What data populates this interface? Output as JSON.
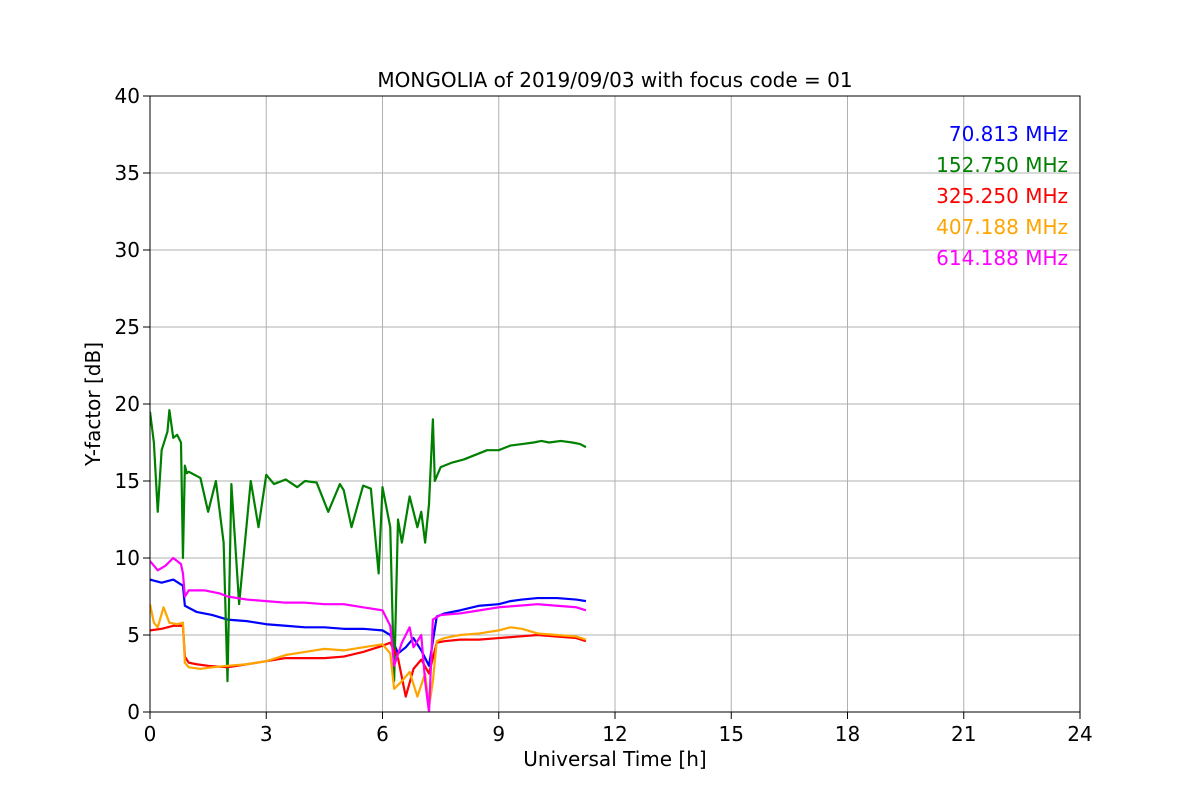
{
  "chart_data": {
    "type": "line",
    "title": "MONGOLIA of 2019/09/03 with focus code = 01",
    "xlabel": "Universal Time [h]",
    "ylabel": "Y-factor [dB]",
    "xlim": [
      0,
      24
    ],
    "ylim": [
      0,
      40
    ],
    "xticks": [
      0,
      3,
      6,
      9,
      12,
      15,
      18,
      21,
      24
    ],
    "yticks": [
      0,
      5,
      10,
      15,
      20,
      25,
      30,
      35,
      40
    ],
    "grid": true,
    "legend_position": "top-right",
    "series": [
      {
        "name": "70.813 MHz",
        "color": "#0000ff",
        "x": [
          0,
          0.3,
          0.6,
          0.85,
          0.9,
          1.2,
          1.6,
          2.0,
          2.5,
          3.0,
          3.5,
          4.0,
          4.5,
          5.0,
          5.5,
          6.0,
          6.2,
          6.4,
          6.6,
          6.8,
          7.0,
          7.2,
          7.4,
          7.6,
          8.0,
          8.5,
          9.0,
          9.3,
          9.6,
          10.0,
          10.5,
          11.0,
          11.25
        ],
        "y": [
          8.6,
          8.4,
          8.6,
          8.2,
          6.9,
          6.5,
          6.3,
          6.0,
          5.9,
          5.7,
          5.6,
          5.5,
          5.5,
          5.4,
          5.4,
          5.3,
          5.0,
          3.8,
          4.2,
          4.8,
          4.0,
          3.0,
          6.2,
          6.4,
          6.6,
          6.9,
          7.0,
          7.2,
          7.3,
          7.4,
          7.4,
          7.3,
          7.2
        ]
      },
      {
        "name": "152.750 MHz",
        "color": "#008000",
        "x": [
          0,
          0.1,
          0.2,
          0.3,
          0.45,
          0.5,
          0.6,
          0.7,
          0.8,
          0.85,
          0.9,
          0.95,
          1.0,
          1.3,
          1.5,
          1.7,
          1.9,
          2.0,
          2.1,
          2.3,
          2.6,
          2.8,
          3.0,
          3.2,
          3.5,
          3.8,
          4.0,
          4.3,
          4.6,
          4.9,
          5.0,
          5.2,
          5.5,
          5.7,
          5.9,
          6.0,
          6.2,
          6.3,
          6.4,
          6.5,
          6.7,
          6.9,
          7.0,
          7.1,
          7.2,
          7.3,
          7.35,
          7.5,
          7.8,
          8.1,
          8.4,
          8.7,
          9.0,
          9.3,
          9.6,
          9.9,
          10.1,
          10.3,
          10.6,
          10.9,
          11.1,
          11.25
        ],
        "y": [
          19.5,
          17.5,
          13.0,
          17.0,
          18.2,
          19.6,
          17.8,
          18.0,
          17.5,
          10.0,
          16.0,
          15.5,
          15.6,
          15.2,
          13.0,
          15.0,
          11.0,
          2.0,
          14.8,
          7.0,
          15.0,
          12.0,
          15.4,
          14.8,
          15.1,
          14.6,
          15.0,
          14.9,
          13.0,
          14.8,
          14.4,
          12.0,
          14.7,
          14.5,
          9.0,
          14.6,
          12.0,
          2.0,
          12.5,
          11.0,
          14.0,
          12.0,
          13.0,
          11.0,
          13.5,
          19.0,
          15.0,
          15.9,
          16.2,
          16.4,
          16.7,
          17.0,
          17.0,
          17.3,
          17.4,
          17.5,
          17.6,
          17.5,
          17.6,
          17.5,
          17.4,
          17.2
        ]
      },
      {
        "name": "325.250 MHz",
        "color": "#ff0000",
        "x": [
          0,
          0.3,
          0.6,
          0.85,
          0.9,
          1.0,
          1.2,
          1.5,
          2.0,
          2.5,
          3.0,
          3.5,
          4.0,
          4.5,
          5.0,
          5.5,
          6.0,
          6.2,
          6.4,
          6.6,
          6.8,
          7.0,
          7.2,
          7.4,
          7.6,
          8.0,
          8.5,
          9.0,
          9.5,
          10.0,
          10.5,
          11.0,
          11.25
        ],
        "y": [
          5.3,
          5.4,
          5.6,
          5.6,
          3.6,
          3.2,
          3.1,
          3.0,
          2.9,
          3.1,
          3.3,
          3.5,
          3.5,
          3.5,
          3.6,
          3.9,
          4.3,
          4.5,
          3.5,
          1.0,
          2.8,
          3.4,
          2.5,
          4.5,
          4.6,
          4.7,
          4.7,
          4.8,
          4.9,
          5.0,
          4.9,
          4.8,
          4.6
        ]
      },
      {
        "name": "407.188 MHz",
        "color": "#ffa500",
        "x": [
          0,
          0.1,
          0.2,
          0.35,
          0.5,
          0.7,
          0.85,
          0.9,
          1.0,
          1.3,
          1.6,
          2.0,
          2.5,
          3.0,
          3.5,
          4.0,
          4.5,
          5.0,
          5.5,
          6.0,
          6.2,
          6.3,
          6.5,
          6.7,
          6.9,
          7.1,
          7.2,
          7.3,
          7.4,
          7.6,
          8.0,
          8.5,
          9.0,
          9.3,
          9.6,
          10.0,
          10.5,
          11.0,
          11.25
        ],
        "y": [
          7.0,
          5.8,
          5.5,
          6.8,
          5.8,
          5.7,
          5.8,
          3.2,
          2.9,
          2.8,
          2.9,
          3.0,
          3.1,
          3.3,
          3.7,
          3.9,
          4.1,
          4.0,
          4.2,
          4.4,
          3.8,
          1.5,
          2.0,
          2.6,
          1.0,
          2.5,
          0.3,
          2.0,
          4.6,
          4.8,
          5.0,
          5.1,
          5.3,
          5.5,
          5.4,
          5.1,
          5.0,
          4.9,
          4.7
        ]
      },
      {
        "name": "614.188 MHz",
        "color": "#ff00ff",
        "x": [
          0,
          0.2,
          0.4,
          0.6,
          0.8,
          0.85,
          0.9,
          1.0,
          1.4,
          1.8,
          2.0,
          2.5,
          3.0,
          3.5,
          4.0,
          4.5,
          5.0,
          5.5,
          6.0,
          6.2,
          6.3,
          6.5,
          6.7,
          6.8,
          7.0,
          7.1,
          7.2,
          7.3,
          7.5,
          8.0,
          8.5,
          9.0,
          9.5,
          10.0,
          10.5,
          11.0,
          11.25
        ],
        "y": [
          9.8,
          9.2,
          9.5,
          10.0,
          9.6,
          9.0,
          7.5,
          7.9,
          7.9,
          7.7,
          7.5,
          7.3,
          7.2,
          7.1,
          7.1,
          7.0,
          7.0,
          6.8,
          6.6,
          5.6,
          3.0,
          4.5,
          5.5,
          4.2,
          5.0,
          2.0,
          0.0,
          6.0,
          6.3,
          6.4,
          6.6,
          6.8,
          6.9,
          7.0,
          6.9,
          6.8,
          6.6
        ]
      }
    ]
  }
}
